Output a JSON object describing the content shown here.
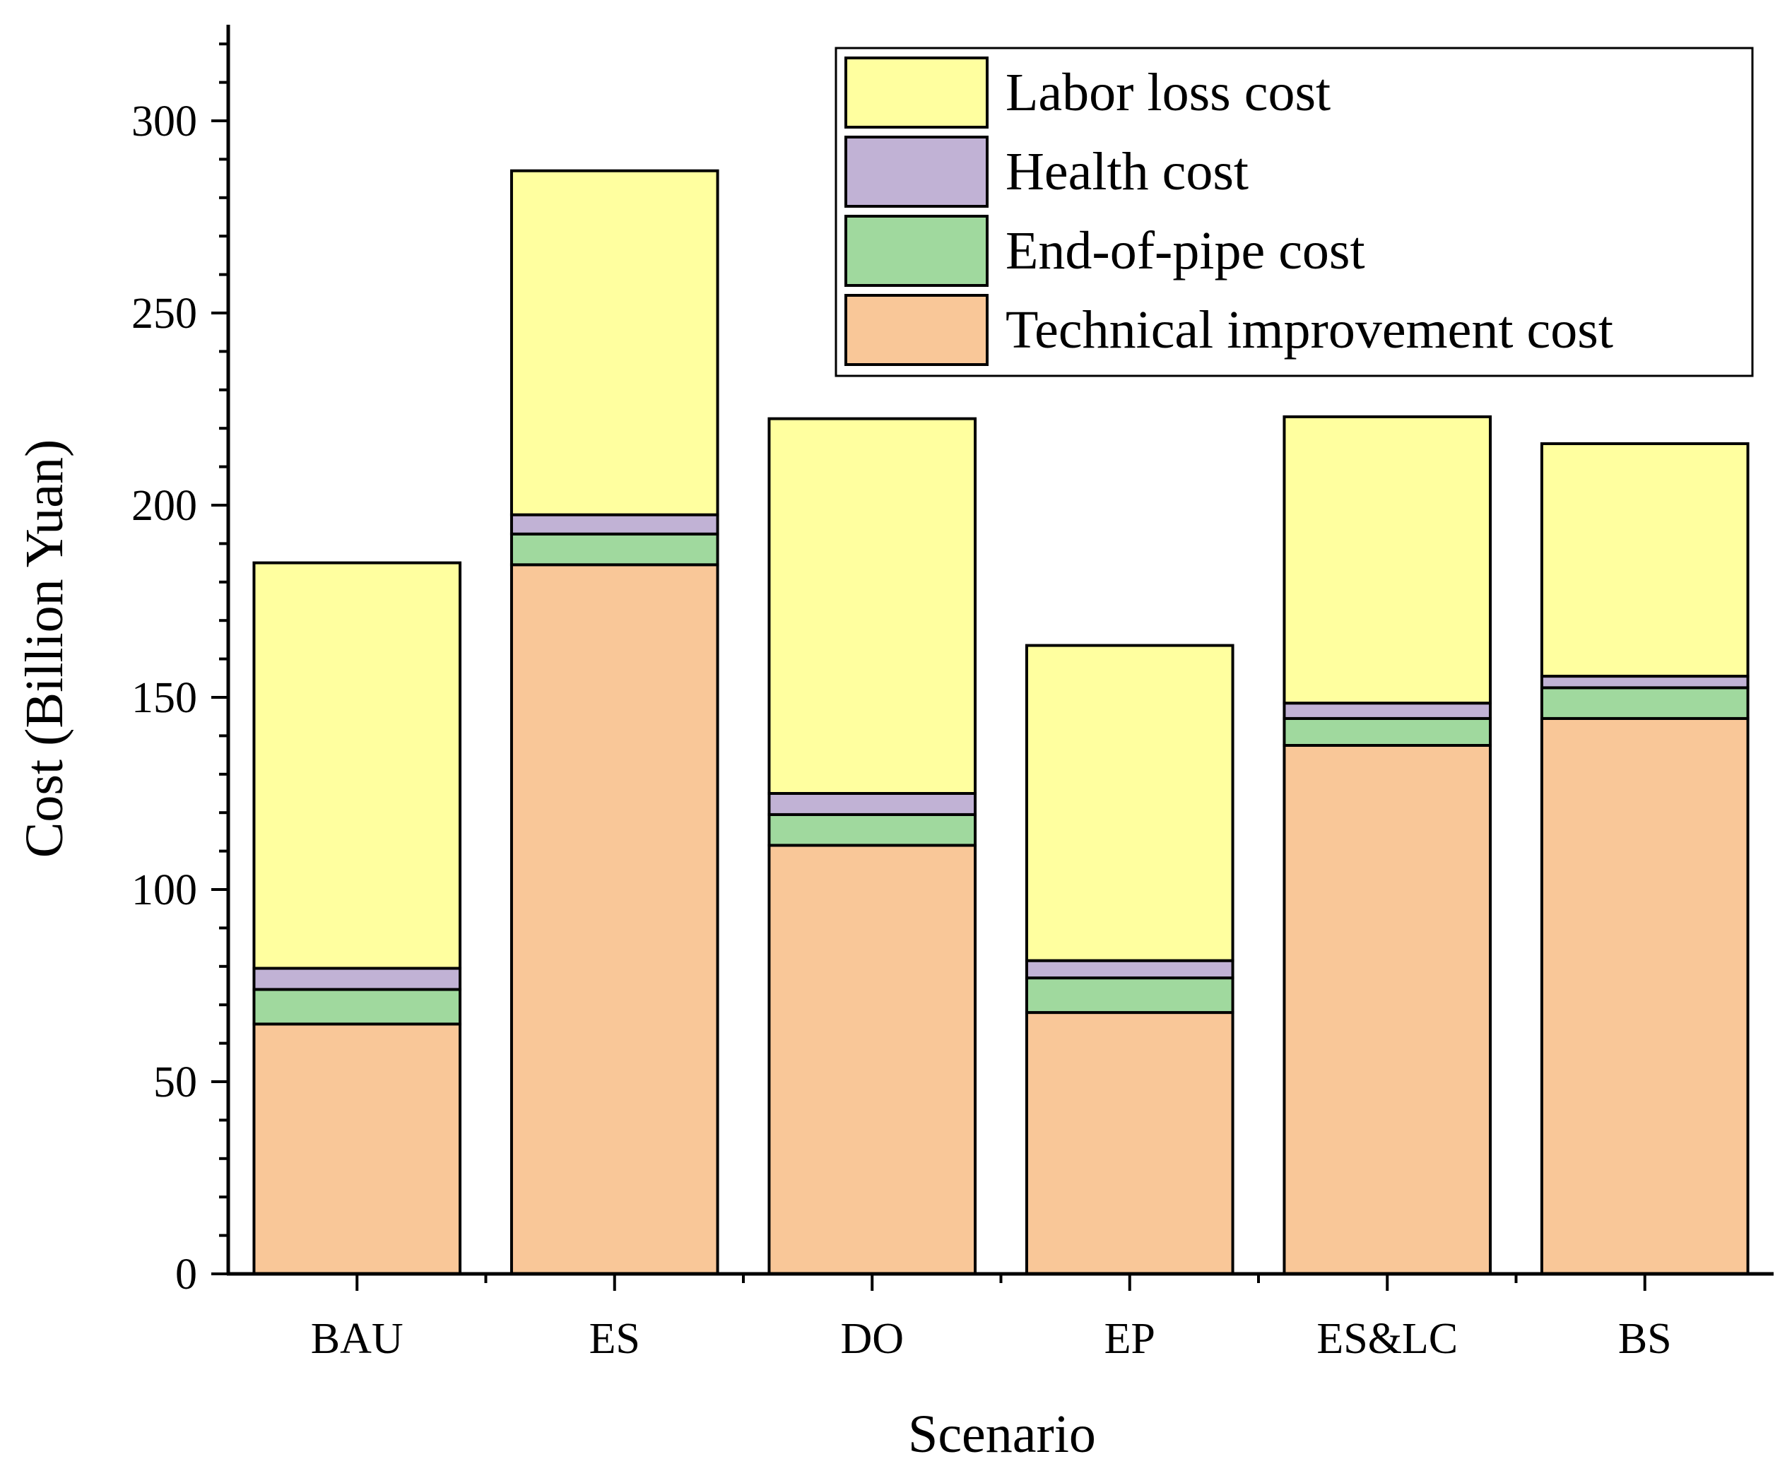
{
  "chart_data": {
    "type": "bar",
    "stacked": true,
    "title": "",
    "xlabel": "Scenario",
    "ylabel": "Cost (Billion Yuan)",
    "ylim": [
      0,
      325
    ],
    "yticks": [
      0,
      50,
      100,
      150,
      200,
      250,
      300
    ],
    "y_minor_step": 10,
    "grid": false,
    "legend_position": "top-right",
    "categories": [
      "BAU",
      "ES",
      "DO",
      "EP",
      "ES&LC",
      "BS"
    ],
    "series": [
      {
        "name": "Technical improvement cost",
        "color": "#F9C798",
        "values": [
          65,
          184.5,
          111.5,
          68,
          137.5,
          144.5
        ]
      },
      {
        "name": "End-of-pipe cost",
        "color": "#A0D99E",
        "values": [
          9,
          8,
          8,
          9,
          7,
          8
        ]
      },
      {
        "name": "Health cost",
        "color": "#C1B2D5",
        "values": [
          5.5,
          5,
          5.5,
          4.5,
          4,
          3
        ]
      },
      {
        "name": "Labor loss cost",
        "color": "#FFFF9F",
        "values": [
          105.5,
          89.5,
          97.5,
          82,
          74.5,
          60.5
        ]
      }
    ],
    "legend_order": [
      "Labor loss cost",
      "Health cost",
      "End-of-pipe cost",
      "Technical improvement cost"
    ]
  }
}
